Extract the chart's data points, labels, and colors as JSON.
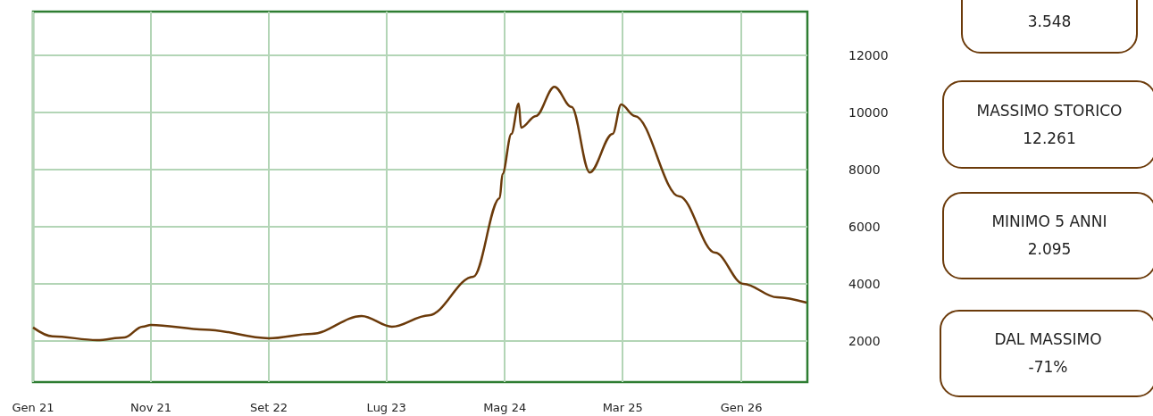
{
  "chart_data": [
    {
      "type": "line",
      "x": [
        "2021-01-01",
        "2021-02-20",
        "2021-06-15",
        "2021-08-25",
        "2021-10-10",
        "2021-11-01",
        "2022-03-20",
        "2022-09-01",
        "2022-12-20",
        "2023-04-28",
        "2023-07-15",
        "2023-10-18",
        "2024-02-10",
        "2024-04-18",
        "2024-04-25",
        "2024-05-18",
        "2024-06-06",
        "2024-06-12",
        "2024-07-20",
        "2024-09-06",
        "2024-10-20",
        "2024-12-06",
        "2025-02-03",
        "2025-02-25",
        "2025-04-01",
        "2025-07-25",
        "2025-10-25",
        "2026-01-06",
        "2026-04-03",
        "2026-06-18"
      ],
      "series": [
        {
          "color": "#6b3a0a",
          "values": [
            2470,
            2160,
            2030,
            2125,
            2500,
            2560,
            2400,
            2094,
            2250,
            2875,
            2500,
            2900,
            4250,
            7000,
            7840,
            9250,
            10310,
            9470,
            9875,
            10900,
            10190,
            7900,
            9250,
            10280,
            9875,
            7060,
            5090,
            4000,
            3530,
            3340
          ]
        }
      ],
      "xlim": [
        "2021-01-01",
        "2026-06-20"
      ],
      "xticks": [
        {
          "value": "2021-01-01",
          "label": "Gen 21"
        },
        {
          "value": "2021-11-01",
          "label": "Nov 21"
        },
        {
          "value": "2022-09-01",
          "label": "Set 22"
        },
        {
          "value": "2023-07-01",
          "label": "Lug 23"
        },
        {
          "value": "2024-05-01",
          "label": "Mag 24"
        },
        {
          "value": "2025-03-01",
          "label": "Mar 25"
        },
        {
          "value": "2026-01-01",
          "label": "Gen 26"
        }
      ],
      "ylim": [
        560,
        13530
      ],
      "yticks": [
        2000,
        4000,
        6000,
        8000,
        10000,
        12000
      ],
      "grid": true,
      "marker": "none",
      "line_style": "solid"
    },
    {
      "type": "other",
      "annotations": [
        "3.548",
        "MASSIMO STORICO\n12.261",
        "MINIMO 5 ANNI\n2.095",
        "DAL MASSIMO\n-71%"
      ]
    }
  ]
}
